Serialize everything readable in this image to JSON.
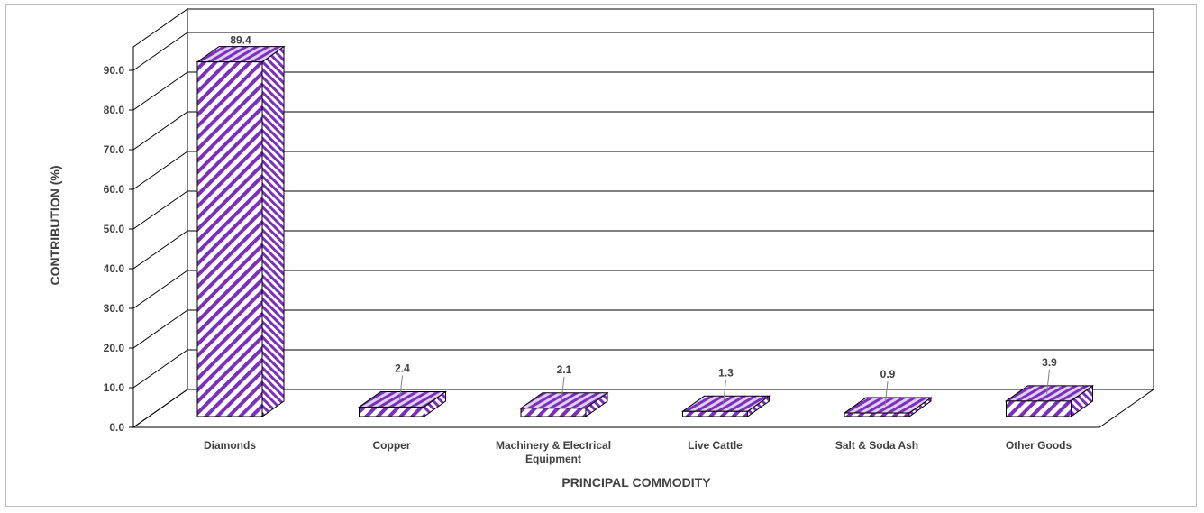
{
  "chart_data": {
    "type": "bar",
    "title": "",
    "xlabel": "PRINCIPAL COMMODITY",
    "ylabel": "CONTRIBUTION (%)",
    "categories": [
      [
        "Diamonds"
      ],
      [
        "Copper"
      ],
      [
        "Machinery & Electrical",
        "Equipment"
      ],
      [
        "Live Cattle"
      ],
      [
        "Salt & Soda Ash"
      ],
      [
        "Other Goods"
      ]
    ],
    "values": [
      89.4,
      2.4,
      2.1,
      1.3,
      0.9,
      3.9
    ],
    "value_labels": [
      "89.4",
      "2.4",
      "2.1",
      "1.3",
      "0.9",
      "3.9"
    ],
    "yticks": [
      "0.0",
      "10.0",
      "20.0",
      "30.0",
      "40.0",
      "50.0",
      "60.0",
      "70.0",
      "80.0",
      "90.0"
    ],
    "ylim": [
      0,
      95
    ],
    "grid": true,
    "style": "3d-column",
    "colors": {
      "bar": "#7b2fbe",
      "bar_side": "#8f5fbf",
      "grid": "#000000"
    }
  }
}
